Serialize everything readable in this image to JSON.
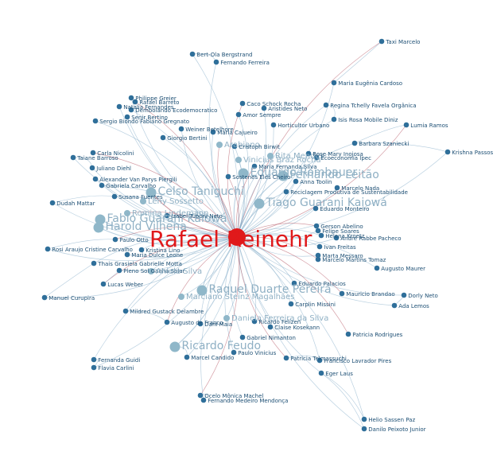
{
  "graph": {
    "colors": {
      "background": "#ffffff",
      "hub": "#e0191b",
      "node": "#2f6f9a",
      "node_light": "#8fb7c9",
      "label_dark": "#1d4f74",
      "label_light": "#8fb0c4",
      "edge_blue": "#7fa9c6",
      "edge_red": "#b04a5a"
    },
    "hub": {
      "label": "Rafael Reinehr",
      "importance": 1.0
    },
    "nodes": [
      {
        "id": "taxi",
        "label": "Taxi Marcelo",
        "tier": 3
      },
      {
        "id": "bertol",
        "label": "Bert-Ola Bergstrand",
        "tier": 3
      },
      {
        "id": "fferreira",
        "label": "Fernando Ferreira",
        "tier": 3
      },
      {
        "id": "mecardoso",
        "label": "Maria Eugênia Cardoso",
        "tier": 3
      },
      {
        "id": "pgreier",
        "label": "Philippe Greier",
        "tier": 3
      },
      {
        "id": "rafaelbarreto",
        "label": "Rafael Barreto",
        "tier": 3
      },
      {
        "id": "natalia",
        "label": "Natalia Fernandes",
        "tier": 3
      },
      {
        "id": "dembolado",
        "label": "Dembolando Ecodemocratico",
        "tier": 3
      },
      {
        "id": "senir",
        "label": "Senir Bertino",
        "tier": 3
      },
      {
        "id": "sergio",
        "label": "Sergio Biondo Fabiano Gregnato",
        "tier": 3
      },
      {
        "id": "caco",
        "label": "Caco Schock Rocha",
        "tier": 3
      },
      {
        "id": "aristides",
        "label": "Aristides Neto",
        "tier": 3
      },
      {
        "id": "regina",
        "label": "Regina Tchelly Favela Orgânica",
        "tier": 3
      },
      {
        "id": "amor",
        "label": "Amor Sempre",
        "tier": 3
      },
      {
        "id": "isis",
        "label": "Isis Rosa Mobile Diniz",
        "tier": 3
      },
      {
        "id": "lumia",
        "label": "Lumia Ramos",
        "tier": 3
      },
      {
        "id": "weiner",
        "label": "Weiner Betelhore",
        "tier": 3
      },
      {
        "id": "horticult",
        "label": "Horticultor Urbano",
        "tier": 3
      },
      {
        "id": "cajueiro",
        "label": "Maria Cajueiro",
        "tier": 3
      },
      {
        "id": "giorgio",
        "label": "Giorgio Bertini",
        "tier": 3
      },
      {
        "id": "arabiano",
        "label": "Arabiano",
        "tier": 2
      },
      {
        "id": "cristoph",
        "label": "Cristoph Birwit",
        "tier": 3
      },
      {
        "id": "barbara",
        "label": "Barbara Szaniecki",
        "tier": 3
      },
      {
        "id": "krishna",
        "label": "Krishna Passos",
        "tier": 3
      },
      {
        "id": "taiane",
        "label": "Taiane Barroso",
        "tier": 3
      },
      {
        "id": "carlas",
        "label": "Carla Nicolini",
        "tier": 3
      },
      {
        "id": "rita",
        "label": "Rita Mendes",
        "tier": 2
      },
      {
        "id": "rosemary",
        "label": "Rose Mary Inojosa",
        "tier": 3
      },
      {
        "id": "juliano",
        "label": "Juliano Diehl",
        "tier": 3
      },
      {
        "id": "vinicius",
        "label": "Vinicius Braz Rocha",
        "tier": 2
      },
      {
        "id": "mariaf",
        "label": "Maria Fernanda Silva",
        "tier": 3
      },
      {
        "id": "economiaviva",
        "label": "Ecoeconomia Ipec",
        "tier": 3
      },
      {
        "id": "alexander",
        "label": "Alexander Van Parys Piergili",
        "tier": 3
      },
      {
        "id": "gabriela",
        "label": "Gabriela Carvalho",
        "tier": 3
      },
      {
        "id": "eduardo",
        "label": "Eduardo Rombauer",
        "tier": 1
      },
      {
        "id": "sostenes",
        "label": "Sostenes Eles Cheiro",
        "tier": 3
      },
      {
        "id": "fernandoleitao",
        "label": "Fernando Leitão",
        "tier": 1
      },
      {
        "id": "annatoolin",
        "label": "Anna Toolin",
        "tier": 3
      },
      {
        "id": "reciclagem",
        "label": "Reciclagem Produtiva de Sustentabilidade",
        "tier": 3
      },
      {
        "id": "marcelo",
        "label": "Marcelo Nada",
        "tier": 3
      },
      {
        "id": "celso",
        "label": "Celso Taniguchi",
        "tier": 1
      },
      {
        "id": "susana",
        "label": "Susana Fuentes",
        "tier": 3
      },
      {
        "id": "leny",
        "label": "Leny Sossetto",
        "tier": 2
      },
      {
        "id": "guarani",
        "label": "Tiago Guarani Kaiowá",
        "tier": 1
      },
      {
        "id": "dudah",
        "label": "Dudah Mattar",
        "tier": 3
      },
      {
        "id": "romina",
        "label": "Romina Lindemann",
        "tier": 2
      },
      {
        "id": "fabio",
        "label": "Fabio Guarani Kaiowá",
        "tier": 1
      },
      {
        "id": "izabel",
        "label": "Izabel Tuboni Neto",
        "tier": 3
      },
      {
        "id": "harold",
        "label": "Harold Vilhena",
        "tier": 1
      },
      {
        "id": "montero",
        "label": "Eduardo Monteiro",
        "tier": 3
      },
      {
        "id": "gerson",
        "label": "Gerson Abelino",
        "tier": 3
      },
      {
        "id": "fsoares",
        "label": "Felipe Soares",
        "tier": 3
      },
      {
        "id": "kroetz",
        "label": "Helena Kroetz",
        "tier": 3
      },
      {
        "id": "pacheco",
        "label": "Andre Rabbe Pacheco",
        "tier": 3
      },
      {
        "id": "rosi",
        "label": "Rosi Araujo Cristine Carvalho",
        "tier": 3
      },
      {
        "id": "paulo",
        "label": "Paulo Otto",
        "tier": 3
      },
      {
        "id": "itafreitas",
        "label": "Ivan Freitas",
        "tier": 3
      },
      {
        "id": "kristina",
        "label": "Kristina Lino",
        "tier": 3
      },
      {
        "id": "mariad",
        "label": "Maria Dulce Leone",
        "tier": 3
      },
      {
        "id": "marta",
        "label": "Marta Messaro",
        "tier": 3
      },
      {
        "id": "tomaz",
        "label": "Marcelo Martins Tomaz",
        "tier": 3
      },
      {
        "id": "thais",
        "label": "Thais Grasiela Gabrielle Motta",
        "tier": 3
      },
      {
        "id": "pleno",
        "label": "Pleno Sol Ganha Solar",
        "tier": 3
      },
      {
        "id": "aniele",
        "label": "Aniele Silva",
        "tier": 2
      },
      {
        "id": "augustomaurer",
        "label": "Augusto Maurer",
        "tier": 3
      },
      {
        "id": "lucas",
        "label": "Lucas Weber",
        "tier": 3
      },
      {
        "id": "palacios",
        "label": "Eduardo Palacios",
        "tier": 3
      },
      {
        "id": "dorly",
        "label": "Dorly Neto",
        "tier": 3
      },
      {
        "id": "manuel",
        "label": "Manuel Curupira",
        "tier": 3
      },
      {
        "id": "raquel",
        "label": "Raquel Duarte Pereira",
        "tier": 1
      },
      {
        "id": "brandao",
        "label": "Mauricio Brandao",
        "tier": 3
      },
      {
        "id": "adalemos",
        "label": "Ada Lemos",
        "tier": 3
      },
      {
        "id": "marciano",
        "label": "Marciano Steinz Magalhães",
        "tier": 2
      },
      {
        "id": "mildred",
        "label": "Mildred Gustack Delambre",
        "tier": 3
      },
      {
        "id": "carplin",
        "label": "Carplin Missini",
        "tier": 3
      },
      {
        "id": "augustofranco",
        "label": "Augusto de Franco",
        "tier": 3
      },
      {
        "id": "daniela",
        "label": "Daniela Ferreira da Silva",
        "tier": 2
      },
      {
        "id": "danimaia",
        "label": "Dani Maia",
        "tier": 3
      },
      {
        "id": "ricardof",
        "label": "Ricardo Felizen",
        "tier": 3
      },
      {
        "id": "claise",
        "label": "Claise Kosekann",
        "tier": 3
      },
      {
        "id": "patriciar",
        "label": "Patricia Rodrigues",
        "tier": 3
      },
      {
        "id": "gabrielm",
        "label": "Gabriel Nimanton",
        "tier": 3
      },
      {
        "id": "ricardofeudo",
        "label": "Ricardo Feudo",
        "tier": 1
      },
      {
        "id": "paulovinicius",
        "label": "Paulo Vinicius",
        "tier": 3
      },
      {
        "id": "marcelcandido",
        "label": "Marcel Candido",
        "tier": 3
      },
      {
        "id": "patriciat",
        "label": "Patricia Telmassuchi",
        "tier": 3
      },
      {
        "id": "lavrador",
        "label": "Francisco Lavrador Pires",
        "tier": 3
      },
      {
        "id": "fernandaguidi",
        "label": "Fernanda Guidi",
        "tier": 3
      },
      {
        "id": "flavia",
        "label": "Flavia Carlini",
        "tier": 3
      },
      {
        "id": "egerlaus",
        "label": "Eger Laus",
        "tier": 3
      },
      {
        "id": "ocelo",
        "label": "Ocelo Mônica Machel",
        "tier": 3
      },
      {
        "id": "mendonca",
        "label": "Fernando Medeiro Mendonça",
        "tier": 3
      },
      {
        "id": "helio",
        "label": "Helio Sassen Paz",
        "tier": 3
      },
      {
        "id": "daniloj",
        "label": "Danilo Peixoto Junior",
        "tier": 3
      }
    ]
  }
}
